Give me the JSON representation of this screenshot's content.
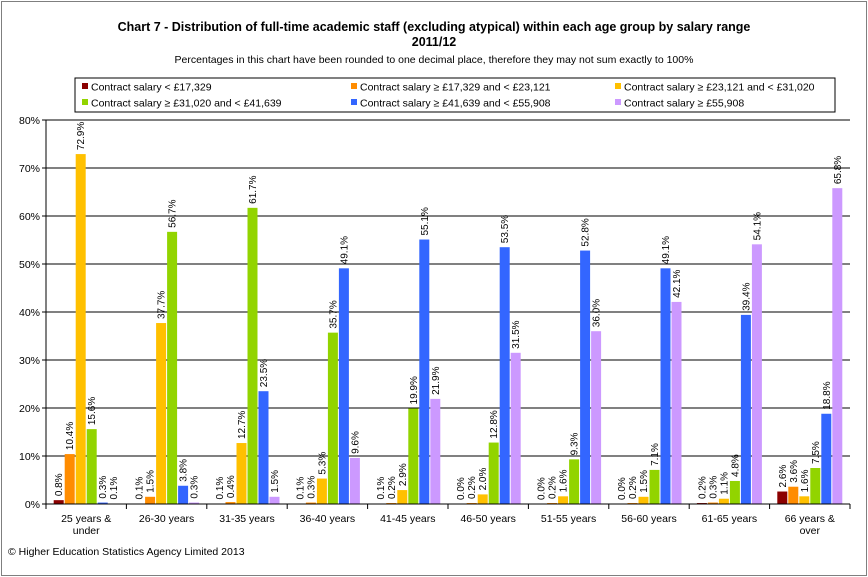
{
  "title_line1": "Chart 7 - Distribution  of full-time academic staff (excluding atypical) within each age group by salary range",
  "title_line2": "2011/12",
  "subtitle": "Percentages in this chart have been rounded to one decimal place, therefore they may not sum exactly to 100%",
  "footer": "© Higher Education Statistics Agency Limited 2013",
  "chart_data": {
    "type": "bar",
    "categories": [
      "25 years & under",
      "26-30 years",
      "31-35 years",
      "36-40 years",
      "41-45 years",
      "46-50 years",
      "51-55 years",
      "56-60 years",
      "61-65 years",
      "66 years & over"
    ],
    "series": [
      {
        "name": "Contract salary < £17,329",
        "color": "#8b0000",
        "values": [
          0.8,
          0.1,
          0.1,
          0.1,
          0.1,
          0.0,
          0.0,
          0.0,
          0.2,
          2.6
        ]
      },
      {
        "name": "Contract salary ≥ £17,329 and < £23,121",
        "color": "#ff8c00",
        "values": [
          10.4,
          1.5,
          0.4,
          0.3,
          0.2,
          0.2,
          0.2,
          0.2,
          0.3,
          3.6
        ]
      },
      {
        "name": "Contract salary ≥ £23,121 and < £31,020",
        "color": "#ffc000",
        "values": [
          72.9,
          37.7,
          12.7,
          5.3,
          2.9,
          2.0,
          1.6,
          1.5,
          1.1,
          1.6
        ]
      },
      {
        "name": "Contract salary ≥ £31,020 and < £41,639",
        "color": "#92d400",
        "values": [
          15.6,
          56.7,
          61.7,
          35.7,
          19.9,
          12.8,
          9.3,
          7.1,
          4.8,
          7.5
        ]
      },
      {
        "name": "Contract salary ≥ £41,639 and < £55,908",
        "color": "#3366ff",
        "values": [
          0.3,
          3.8,
          23.5,
          49.1,
          55.1,
          53.5,
          52.8,
          49.1,
          39.4,
          18.8
        ]
      },
      {
        "name": "Contract salary ≥ £55,908",
        "color": "#cc99ff",
        "values": [
          0.1,
          0.3,
          1.5,
          9.6,
          21.9,
          31.5,
          36.0,
          42.1,
          54.1,
          65.8
        ]
      }
    ],
    "value_labels": [
      [
        "0.8%",
        "0.1%",
        "0.1%",
        "0.1%",
        "0.1%",
        "0.0%",
        "0.0%",
        "0.0%",
        "0.2%",
        "2.6%"
      ],
      [
        "10.4%",
        "1.5%",
        "0.4%",
        "0.3%",
        "0.2%",
        "0.2%",
        "0.2%",
        "0.2%",
        "0.3%",
        "3.6%"
      ],
      [
        "72.9%",
        "37.7%",
        "12.7%",
        "5.3%",
        "2.9%",
        "2.0%",
        "1.6%",
        "1.5%",
        "1.1%",
        "1.6%"
      ],
      [
        "15.6%",
        "56.7%",
        "61.7%",
        "35.7%",
        "19.9%",
        "12.8%",
        "9.3%",
        "7.1%",
        "4.8%",
        "7.5%"
      ],
      [
        "0.3%",
        "3.8%",
        "23.5%",
        "49.1%",
        "55.1%",
        "53.5%",
        "52.8%",
        "49.1%",
        "39.4%",
        "18.8%"
      ],
      [
        "0.1%",
        "0.3%",
        "1.5%",
        "9.6%",
        "21.9%",
        "31.5%",
        "36.0%",
        "42.1%",
        "54.1%",
        "65.8%"
      ]
    ],
    "ylim": [
      0,
      80
    ],
    "y_ticks": [
      "0%",
      "10%",
      "20%",
      "30%",
      "40%",
      "50%",
      "60%",
      "70%",
      "80%"
    ],
    "xlabel": "",
    "ylabel": "",
    "grid": true,
    "legend_position": "top"
  }
}
